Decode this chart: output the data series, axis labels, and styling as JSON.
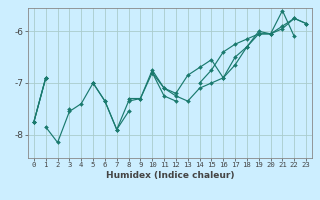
{
  "xlabel": "Humidex (Indice chaleur)",
  "bg_color": "#cceeff",
  "line_color": "#1a7a6e",
  "grid_color": "#aacccc",
  "tick_color": "#444444",
  "xlim": [
    -0.5,
    23.5
  ],
  "ylim": [
    -8.45,
    -5.55
  ],
  "yticks": [
    -8,
    -7,
    -6
  ],
  "xticks": [
    0,
    1,
    2,
    3,
    4,
    5,
    6,
    7,
    8,
    9,
    10,
    11,
    12,
    13,
    14,
    15,
    16,
    17,
    18,
    19,
    20,
    21,
    22,
    23
  ],
  "series": [
    [
      null,
      -7.85,
      -8.15,
      -7.55,
      -7.4,
      -7.0,
      -7.35,
      -7.9,
      -7.35,
      -7.3,
      -6.8,
      -7.1,
      -7.25,
      -7.35,
      -7.1,
      -7.0,
      -6.9,
      -6.65,
      -6.3,
      -6.05,
      -6.05,
      -5.9,
      -5.75,
      -5.85
    ],
    [
      -7.75,
      -6.9,
      null,
      -7.5,
      null,
      -7.0,
      -7.35,
      -7.9,
      -7.55,
      null,
      -6.8,
      -7.25,
      -7.35,
      null,
      -7.0,
      -6.75,
      -6.4,
      -6.25,
      -6.15,
      -6.05,
      -6.05,
      -5.6,
      -6.1,
      null
    ],
    [
      -7.75,
      -6.9,
      null,
      null,
      null,
      -7.0,
      null,
      null,
      -7.3,
      -7.3,
      -6.75,
      -7.1,
      -7.2,
      -6.85,
      -6.7,
      -6.55,
      -6.9,
      -6.5,
      -6.3,
      -6.0,
      -6.05,
      -5.95,
      -5.75,
      -5.85
    ],
    [
      -7.75,
      -6.9,
      null,
      null,
      null,
      null,
      null,
      null,
      null,
      null,
      null,
      null,
      null,
      null,
      null,
      null,
      null,
      null,
      null,
      null,
      null,
      null,
      null,
      null
    ]
  ]
}
